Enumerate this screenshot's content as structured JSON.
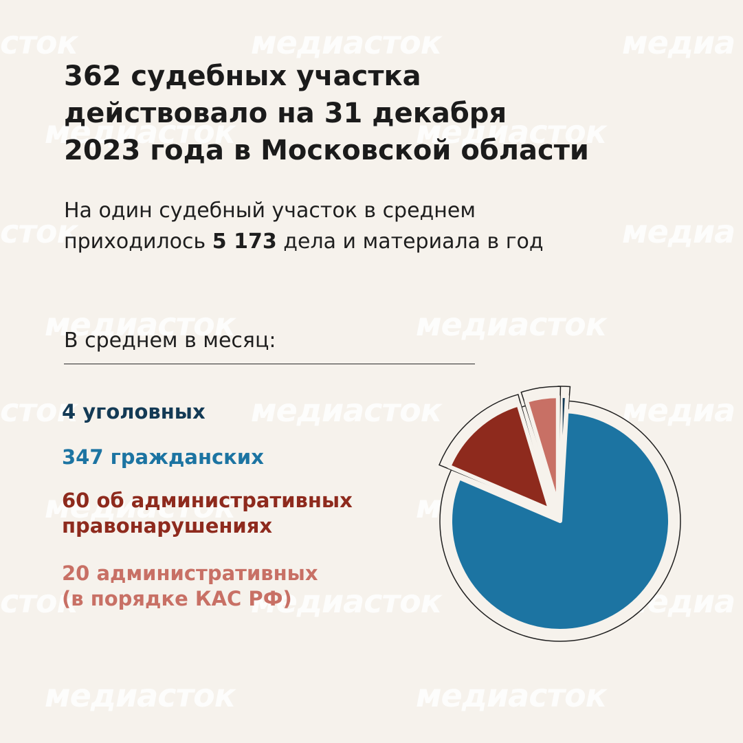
{
  "header": {
    "title_lines": [
      "362 судебных участка",
      "действовало на 31 декабря",
      "2023 года в Московской области"
    ],
    "subtitle_line1": "На один судебный участок в среднем",
    "subtitle_line2_pre": "приходилось",
    "subtitle_line2_bold": "5 173",
    "subtitle_line2_post": "дела и материала в год"
  },
  "section": {
    "label": "В среднем в месяц:"
  },
  "legend": [
    {
      "lines": [
        "4 уголовных"
      ],
      "color": "#133a55"
    },
    {
      "lines": [
        "347 гражданских"
      ],
      "color": "#1c74a2"
    },
    {
      "lines": [
        "60 об административных",
        "правонарушениях"
      ],
      "color": "#8e2a1d"
    },
    {
      "lines": [
        "20 административных",
        "(в порядке КАС РФ)"
      ],
      "color": "#c87065"
    }
  ],
  "watermark": {
    "text": "медиасток",
    "text_fragment_left": "сток",
    "text_fragment_right": "медиа"
  },
  "chart_data": {
    "type": "pie",
    "categories": [
      "уголовных",
      "гражданских",
      "об административных правонарушениях",
      "административных (в порядке КАС РФ)"
    ],
    "values": [
      4,
      347,
      60,
      20
    ],
    "colors": [
      "#133a55",
      "#1c74a2",
      "#8e2a1d",
      "#c87065"
    ],
    "exploded": [
      "уголовных",
      "об административных правонарушениях",
      "административных (в порядке КАС РФ)"
    ],
    "legend_position": "left"
  }
}
